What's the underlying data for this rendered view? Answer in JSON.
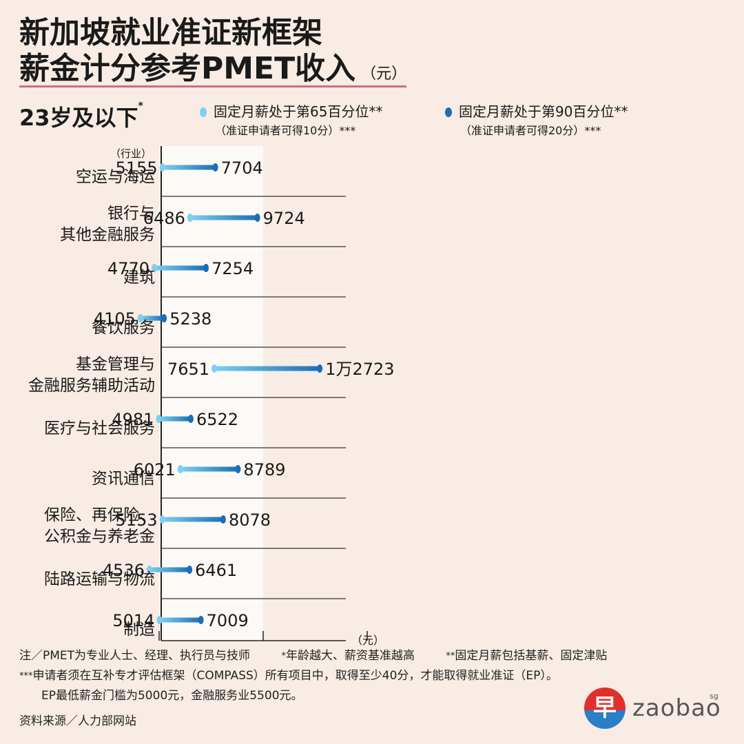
{
  "title_line1": "新加坡就业准证新框架",
  "title_line2": "薪金计分参考PMET收入",
  "title_unit": "（元）",
  "age_group": "23岁及以下",
  "age_mark": "*",
  "legend": {
    "p65_label": "固定月薪处于第65百分位**",
    "p65_sub": "（准证申请者可得10分）***",
    "p90_label": "固定月薪处于第90百分位**",
    "p90_sub": "（准证申请者可得20分）***"
  },
  "colors": {
    "background": "#f8ece4",
    "p65": "#7ed0f0",
    "p90": "#1a6fb6",
    "highlight_band": "#fdf9f6",
    "title_rule": "#d86a7a"
  },
  "chart_data": {
    "type": "dumbbell",
    "category_axis_label": "（行业）",
    "value_axis_unit": "（元）",
    "categories": [
      [
        "空运与海运"
      ],
      [
        "银行与",
        "其他金融服务"
      ],
      [
        "建筑"
      ],
      [
        "餐饮服务"
      ],
      [
        "基金管理与",
        "金融服务辅助活动"
      ],
      [
        "医疗与社会服务"
      ],
      [
        "资讯通信"
      ],
      [
        "保险、再保险、",
        "公积金与养老金"
      ],
      [
        "陆路运输与物流"
      ],
      [
        "制造"
      ]
    ],
    "series": [
      {
        "name": "固定月薪处于第65百分位",
        "values": [
          5155,
          6486,
          4770,
          4105,
          7651,
          4981,
          6021,
          5153,
          4536,
          5014
        ]
      },
      {
        "name": "固定月薪处于第90百分位",
        "values": [
          7704,
          9724,
          7254,
          5238,
          12723,
          6522,
          8789,
          8078,
          6461,
          7009
        ]
      }
    ],
    "p65_labels": [
      "5155",
      "6486",
      "4770",
      "4105",
      "7651",
      "4981",
      "6021",
      "5153",
      "4536",
      "5014"
    ],
    "p90_labels": [
      "7704",
      "9724",
      "7254",
      "5238",
      "1万2723",
      "6522",
      "8789",
      "8078",
      "6461",
      "7009"
    ],
    "highlight_range": [
      5000,
      10000
    ],
    "xlim": [
      0,
      15000
    ],
    "grid": "horizontal separators"
  },
  "footnotes": {
    "n1": "注／PMET为专业人士、经理、执行员与技师",
    "n2_mark": "*",
    "n2": "年龄越大、薪资基准越高",
    "n3_mark": "**",
    "n3": "固定月薪包括基薪、固定津贴",
    "n4_mark": "***",
    "n4": "申请者须在互补专才评估框架（COMPASS）所有项目中，取得至少40分，才能取得就业准证（EP）。",
    "n5": "EP最低薪金门槛为5000元，金融服务业5500元。",
    "source": "资料来源／人力部网站"
  },
  "logo": {
    "glyph": "早",
    "word": "zaobao",
    "suffix": "sg"
  }
}
